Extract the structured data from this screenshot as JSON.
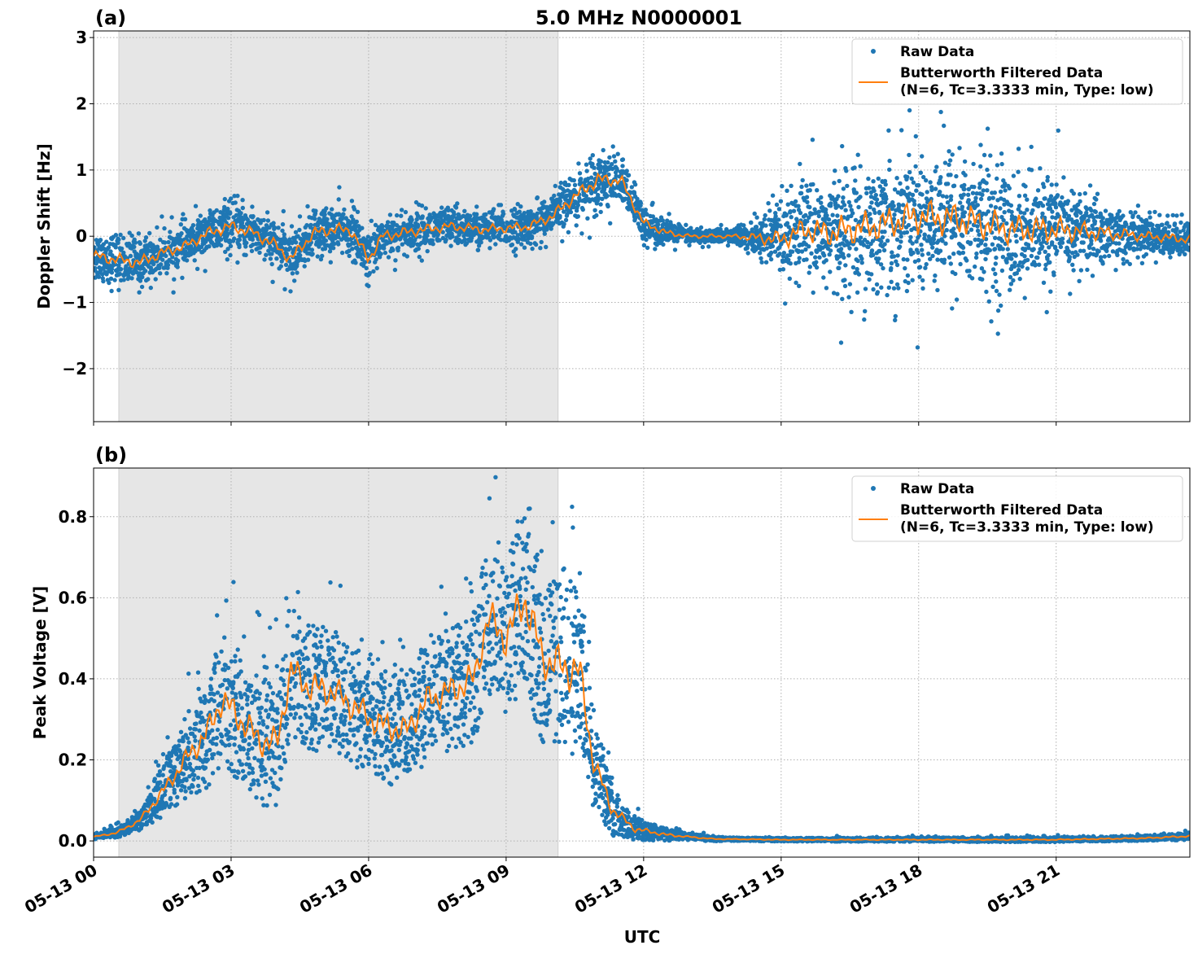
{
  "figure": {
    "title": "5.0 MHz N0000001",
    "xlabel": "UTC",
    "colors": {
      "raw": "#1f77b4",
      "filtered": "#ff7f0e",
      "night_shade": "#e6e6e6",
      "grid": "#b0b0b0"
    }
  },
  "chart_data": [
    {
      "type": "scatter",
      "panel_label": "(a)",
      "ylabel": "Doppler Shift [Hz]",
      "xlim": [
        "05-13 00:00",
        "05-13 23:55"
      ],
      "ylim": [
        -2.8,
        3.1
      ],
      "yticks": [
        -2,
        -1,
        0,
        1,
        2,
        3
      ],
      "ytick_labels": [
        "−2",
        "−1",
        "0",
        "1",
        "2",
        "3"
      ],
      "xticks": [
        "05-13 00",
        "05-13 03",
        "05-13 06",
        "05-13 09",
        "05-13 12",
        "05-13 15",
        "05-13 18",
        "05-13 21"
      ],
      "shaded_region": [
        "05-13 00:33",
        "05-13 10:08"
      ],
      "grid": true,
      "legend_position": "top-right",
      "legend": [
        {
          "kind": "marker",
          "label": "Raw Data"
        },
        {
          "kind": "line",
          "label": "Butterworth Filtered Data",
          "label2": "(N=6, Tc=3.3333 min, Type: low)"
        }
      ],
      "filtered_series": {
        "x_hours": [
          0,
          0.5,
          1,
          1.5,
          2,
          2.5,
          3,
          3.5,
          4,
          4.3,
          4.8,
          5.2,
          5.6,
          6,
          6.3,
          7,
          7.8,
          8.5,
          9,
          9.5,
          10,
          10.5,
          11,
          11.5,
          12,
          12.5,
          13,
          14,
          15,
          15.5,
          16,
          17,
          18,
          19,
          20,
          21,
          22,
          23,
          23.95
        ],
        "y": [
          -0.3,
          -0.35,
          -0.4,
          -0.25,
          -0.15,
          0.05,
          0.15,
          0.05,
          -0.15,
          -0.35,
          0.05,
          0.1,
          0.1,
          -0.35,
          0.0,
          0.08,
          0.15,
          0.1,
          0.12,
          0.15,
          0.3,
          0.6,
          0.85,
          0.85,
          0.2,
          0.05,
          0.0,
          0.0,
          -0.05,
          0.1,
          0.05,
          0.15,
          0.3,
          0.25,
          0.1,
          0.1,
          0.05,
          0.0,
          -0.05
        ]
      },
      "raw_envelope": {
        "x_hours": [
          0,
          1,
          2,
          3,
          4,
          5,
          6,
          7,
          8,
          9,
          10,
          11,
          12,
          13,
          14,
          15,
          16,
          17,
          18,
          19,
          20,
          21,
          22,
          23,
          23.95
        ],
        "spread": [
          0.45,
          0.45,
          0.4,
          0.45,
          0.45,
          0.45,
          0.45,
          0.4,
          0.35,
          0.35,
          0.4,
          0.55,
          0.35,
          0.15,
          0.15,
          0.7,
          1.1,
          1.2,
          1.3,
          1.3,
          1.15,
          0.95,
          0.6,
          0.35,
          0.35
        ]
      }
    },
    {
      "type": "scatter",
      "panel_label": "(b)",
      "ylabel": "Peak Voltage [V]",
      "xlim": [
        "05-13 00:00",
        "05-13 23:55"
      ],
      "ylim": [
        -0.04,
        0.92
      ],
      "yticks": [
        0.0,
        0.2,
        0.4,
        0.6,
        0.8
      ],
      "ytick_labels": [
        "0.0",
        "0.2",
        "0.4",
        "0.6",
        "0.8"
      ],
      "xticks": [
        "05-13 00",
        "05-13 03",
        "05-13 06",
        "05-13 09",
        "05-13 12",
        "05-13 15",
        "05-13 18",
        "05-13 21"
      ],
      "shaded_region": [
        "05-13 00:33",
        "05-13 10:08"
      ],
      "grid": true,
      "legend_position": "top-right",
      "legend": [
        {
          "kind": "marker",
          "label": "Raw Data"
        },
        {
          "kind": "line",
          "label": "Butterworth Filtered Data",
          "label2": "(N=6, Tc=3.3333 min, Type: low)"
        }
      ],
      "filtered_series": {
        "x_hours": [
          0,
          0.5,
          1,
          1.5,
          2,
          2.5,
          2.8,
          3.2,
          3.6,
          4,
          4.3,
          4.7,
          5.2,
          5.7,
          6.2,
          6.8,
          7.3,
          7.8,
          8.3,
          8.6,
          9,
          9.4,
          9.8,
          10.2,
          10.6,
          10.9,
          11.3,
          11.8,
          12.5,
          13.5,
          15,
          18,
          21,
          23,
          23.95
        ],
        "y": [
          0.01,
          0.02,
          0.05,
          0.12,
          0.2,
          0.27,
          0.35,
          0.3,
          0.25,
          0.24,
          0.42,
          0.38,
          0.37,
          0.33,
          0.29,
          0.27,
          0.35,
          0.37,
          0.4,
          0.55,
          0.5,
          0.6,
          0.45,
          0.43,
          0.42,
          0.2,
          0.08,
          0.03,
          0.015,
          0.005,
          0.003,
          0.003,
          0.003,
          0.007,
          0.012
        ]
      },
      "raw_envelope": {
        "x_hours": [
          0,
          0.5,
          1,
          1.5,
          2,
          2.5,
          3,
          3.5,
          4,
          5,
          6,
          7,
          8,
          9,
          9.5,
          10,
          10.5,
          11,
          11.5,
          12,
          13,
          14,
          23,
          23.95
        ],
        "spread": [
          0.008,
          0.015,
          0.03,
          0.08,
          0.12,
          0.18,
          0.2,
          0.2,
          0.2,
          0.2,
          0.18,
          0.18,
          0.2,
          0.25,
          0.28,
          0.25,
          0.28,
          0.12,
          0.06,
          0.03,
          0.01,
          0.005,
          0.008,
          0.012
        ]
      }
    }
  ]
}
